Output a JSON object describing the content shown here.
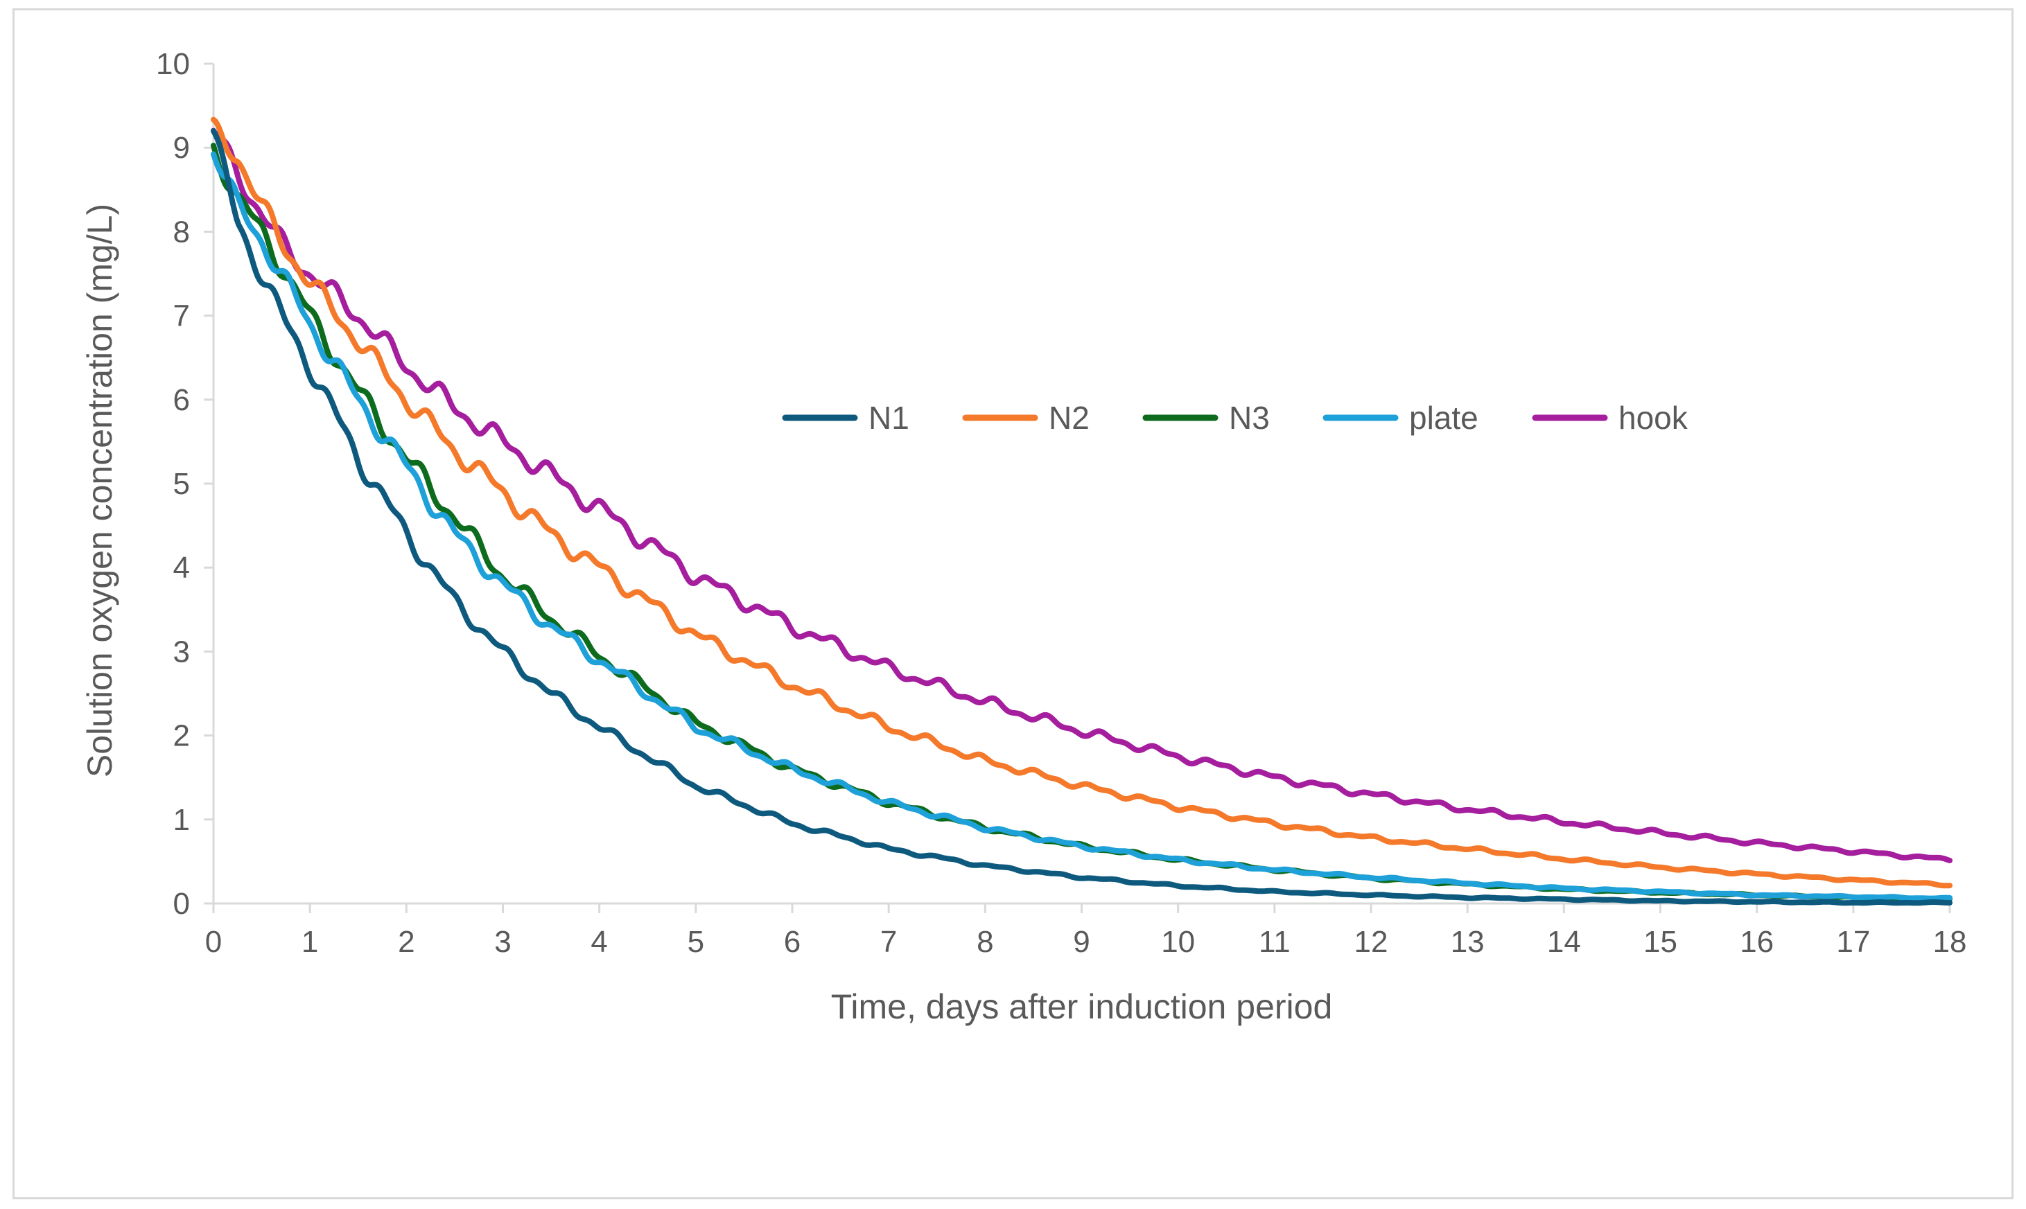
{
  "chart_data": {
    "type": "line",
    "title": "",
    "xlabel": "Time, days after induction period",
    "ylabel": "Solution oxygen concentration (mg/L)",
    "xlim": [
      0,
      18
    ],
    "ylim": [
      0,
      10
    ],
    "xticks": [
      "0",
      "1",
      "2",
      "3",
      "4",
      "5",
      "6",
      "7",
      "8",
      "9",
      "10",
      "11",
      "12",
      "13",
      "14",
      "15",
      "16",
      "17",
      "18"
    ],
    "yticks": [
      "0",
      "1",
      "2",
      "3",
      "4",
      "5",
      "6",
      "7",
      "8",
      "9",
      "10"
    ],
    "grid": false,
    "legend_position": "center-right",
    "x": [
      0,
      0.25,
      0.5,
      0.75,
      1,
      1.5,
      2,
      2.5,
      3,
      3.5,
      4,
      5,
      6,
      7,
      8,
      9,
      10,
      11,
      12,
      13,
      14,
      15,
      16,
      17,
      18
    ],
    "series": [
      {
        "name": "N1",
        "color": "#0e5a7e",
        "values": [
          9.2,
          8.1,
          7.5,
          6.9,
          6.4,
          5.3,
          4.4,
          3.6,
          3.0,
          2.5,
          2.1,
          1.4,
          0.95,
          0.65,
          0.45,
          0.31,
          0.21,
          0.14,
          0.1,
          0.07,
          0.05,
          0.03,
          0.02,
          0.01,
          0.01
        ]
      },
      {
        "name": "N2",
        "color": "#f4792a",
        "values": [
          9.2,
          8.9,
          8.3,
          7.8,
          7.4,
          6.7,
          6.0,
          5.4,
          4.9,
          4.4,
          4.0,
          3.2,
          2.6,
          2.1,
          1.7,
          1.4,
          1.15,
          0.95,
          0.78,
          0.65,
          0.53,
          0.43,
          0.35,
          0.28,
          0.22
        ]
      },
      {
        "name": "N3",
        "color": "#0d6b1e",
        "values": [
          9.0,
          8.4,
          8.0,
          7.5,
          7.0,
          6.1,
          5.3,
          4.6,
          3.9,
          3.4,
          2.95,
          2.15,
          1.6,
          1.2,
          0.9,
          0.68,
          0.52,
          0.4,
          0.3,
          0.23,
          0.17,
          0.13,
          0.1,
          0.07,
          0.05
        ]
      },
      {
        "name": "plate",
        "color": "#1ea0d8",
        "values": [
          9.0,
          8.3,
          7.9,
          7.4,
          6.9,
          6.0,
          5.2,
          4.4,
          3.8,
          3.3,
          2.9,
          2.1,
          1.6,
          1.2,
          0.9,
          0.68,
          0.52,
          0.4,
          0.31,
          0.24,
          0.18,
          0.14,
          0.1,
          0.08,
          0.06
        ]
      },
      {
        "name": "hook",
        "color": "#a51e9e",
        "values": [
          9.2,
          8.7,
          8.2,
          7.8,
          7.5,
          7.0,
          6.4,
          5.9,
          5.5,
          5.1,
          4.7,
          3.9,
          3.3,
          2.8,
          2.4,
          2.05,
          1.75,
          1.5,
          1.3,
          1.12,
          0.97,
          0.84,
          0.72,
          0.62,
          0.52
        ]
      }
    ]
  }
}
